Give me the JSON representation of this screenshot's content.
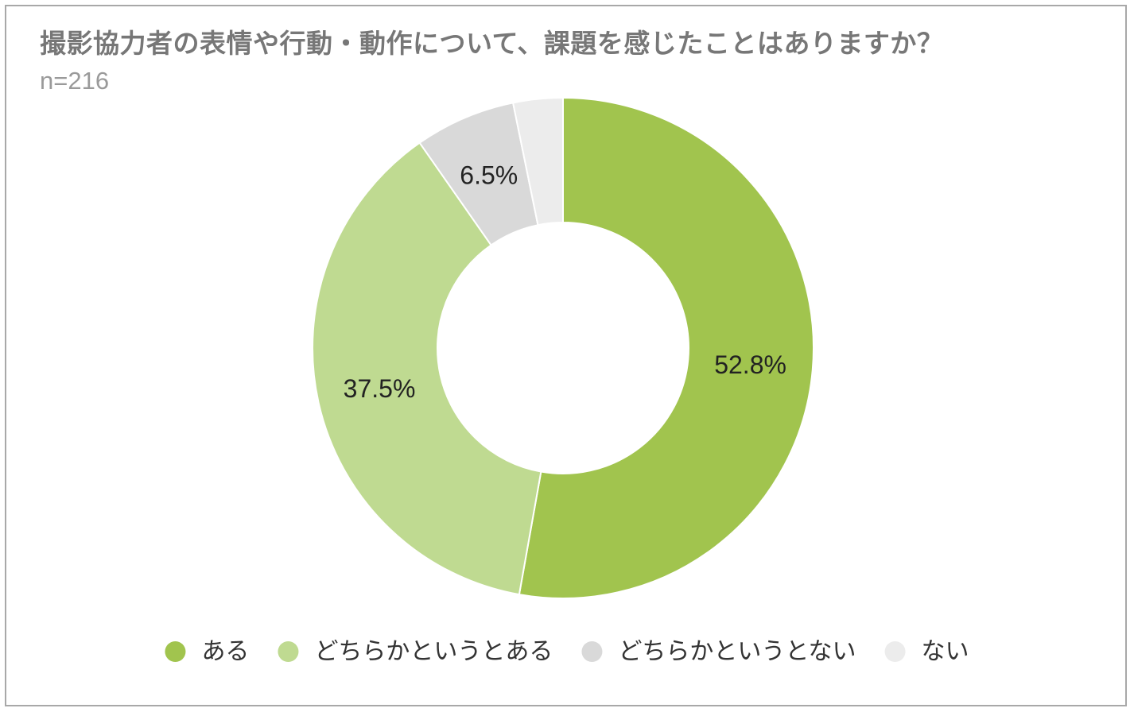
{
  "chart_data": {
    "type": "pie",
    "title": "撮影協力者の表情や行動・動作について、課題を感じたことはありますか？",
    "subtitle": "n=216",
    "donut": true,
    "legend_position": "bottom",
    "slices": [
      {
        "label": "ある",
        "value": 52.8,
        "display": "52.8%",
        "color": "#a1c44e"
      },
      {
        "label": "どちらかというとある",
        "value": 37.5,
        "display": "37.5%",
        "color": "#bfda91"
      },
      {
        "label": "どちらかというとない",
        "value": 6.5,
        "display": "6.5%",
        "color": "#d9d9d9"
      },
      {
        "label": "ない",
        "value": 3.2,
        "display": "",
        "color": "#ececec"
      }
    ]
  }
}
